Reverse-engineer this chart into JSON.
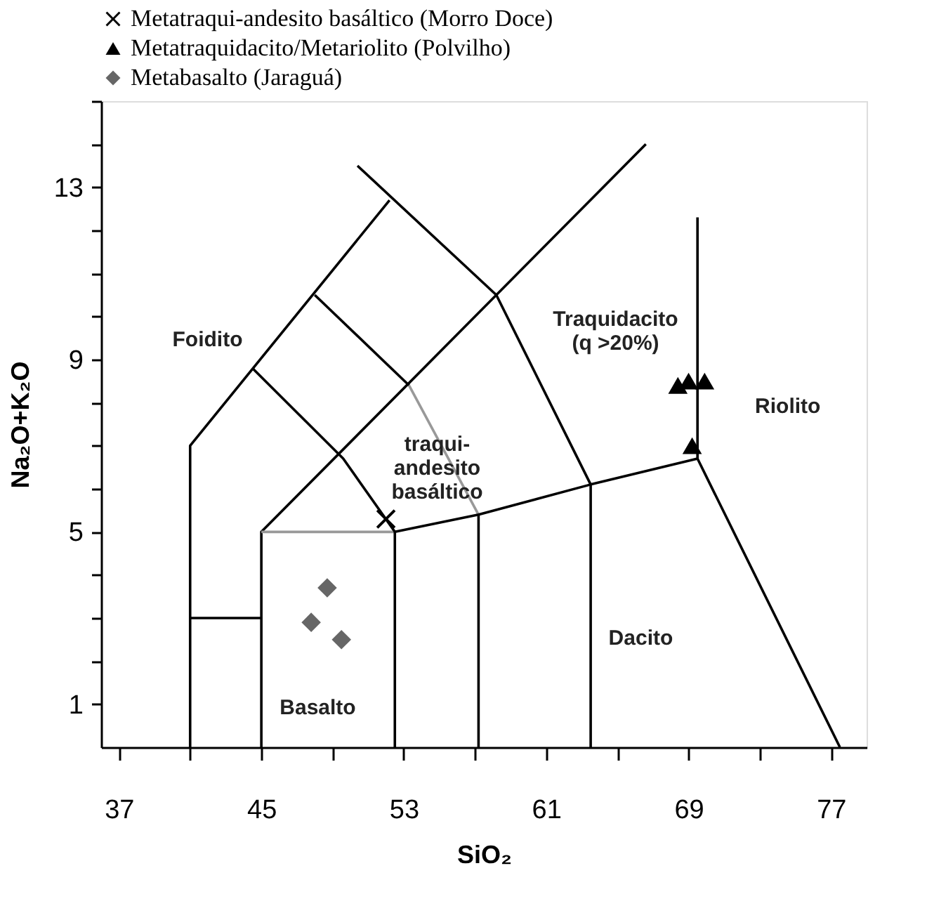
{
  "chart_data": {
    "type": "scatter",
    "xlabel": "SiO₂",
    "ylabel": "Na₂O+K₂O",
    "xlim": [
      36,
      79
    ],
    "ylim": [
      0,
      15
    ],
    "xticks": [
      37,
      {
        "value": 41,
        "label": null
      },
      45,
      {
        "value": 49,
        "label": null
      },
      53,
      {
        "value": 57,
        "label": null
      },
      61,
      {
        "value": 65,
        "label": null
      },
      69,
      {
        "value": 73,
        "label": null
      },
      77
    ],
    "yticks": [
      1,
      {
        "value": 2,
        "label": null
      },
      {
        "value": 3,
        "label": null
      },
      {
        "value": 4,
        "label": null
      },
      5,
      {
        "value": 6,
        "label": null
      },
      {
        "value": 7,
        "label": null
      },
      {
        "value": 8,
        "label": null
      },
      9,
      {
        "value": 10,
        "label": null
      },
      {
        "value": 11,
        "label": null
      },
      {
        "value": 12,
        "label": null
      },
      13,
      {
        "value": 14,
        "label": null
      },
      {
        "value": 15,
        "label": null
      }
    ],
    "grid": false,
    "legend": "top",
    "series": [
      {
        "type": "line",
        "color": "#000000",
        "x": [
          41,
          41,
          52.2
        ],
        "values": [
          0,
          7,
          12.7
        ]
      },
      {
        "type": "line",
        "color": "#000000",
        "x": [
          41,
          45
        ],
        "values": [
          3,
          3
        ]
      },
      {
        "type": "line",
        "color": "#000000",
        "x": [
          45,
          45,
          66.6
        ],
        "values": [
          0,
          5,
          14.0
        ]
      },
      {
        "type": "line",
        "color": "#999999",
        "x": [
          45,
          52.5
        ],
        "values": [
          5,
          5
        ]
      },
      {
        "type": "line",
        "color": "#000000",
        "x": [
          44.5,
          49.6,
          52.5,
          52.5
        ],
        "values": [
          8.8,
          6.7,
          5,
          0
        ]
      },
      {
        "type": "line",
        "color": "#000000",
        "x": [
          48.0,
          53.3
        ],
        "values": [
          10.5,
          8.4
        ]
      },
      {
        "type": "line",
        "color": "#999999",
        "x": [
          53.3,
          57.2
        ],
        "values": [
          8.4,
          5.4
        ]
      },
      {
        "type": "line",
        "color": "#000000",
        "x": [
          52.5,
          57.2,
          63.5,
          69.5,
          77.5
        ],
        "values": [
          5,
          5.4,
          6.1,
          6.7,
          0
        ]
      },
      {
        "type": "line",
        "color": "#000000",
        "x": [
          57.2,
          57.2
        ],
        "values": [
          0,
          5.4
        ]
      },
      {
        "type": "line",
        "color": "#000000",
        "x": [
          50.4,
          58.2,
          63.5,
          63.5
        ],
        "values": [
          13.5,
          10.5,
          6.1,
          0
        ]
      },
      {
        "type": "line",
        "color": "#000000",
        "x": [
          69.5,
          69.5
        ],
        "values": [
          6.7,
          12.3
        ]
      },
      {
        "name": "Metatraqui-andesito basáltico (Morro Doce)",
        "color": "#000000",
        "marker": "cross",
        "x": [
          52.0
        ],
        "values": [
          5.3
        ]
      },
      {
        "name": "Metatraquidacito/Metariolito (Polvilho)",
        "color": "#000000",
        "marker": "triangle",
        "x": [
          68.4,
          69.0,
          69.9,
          69.2
        ],
        "values": [
          8.4,
          8.5,
          8.5,
          7.0
        ]
      },
      {
        "name": "Metabasalto (Jaraguá)",
        "color": "#666666",
        "marker": "diamond",
        "x": [
          48.7,
          47.8,
          49.5
        ],
        "values": [
          3.7,
          2.9,
          2.5
        ]
      }
    ],
    "annotations": [
      "Foidito",
      "Traquidacito\n(q >20%)",
      "traqui-\nandesito\nbasáltico",
      "Riolito",
      "Dacito",
      "Basalto"
    ]
  }
}
